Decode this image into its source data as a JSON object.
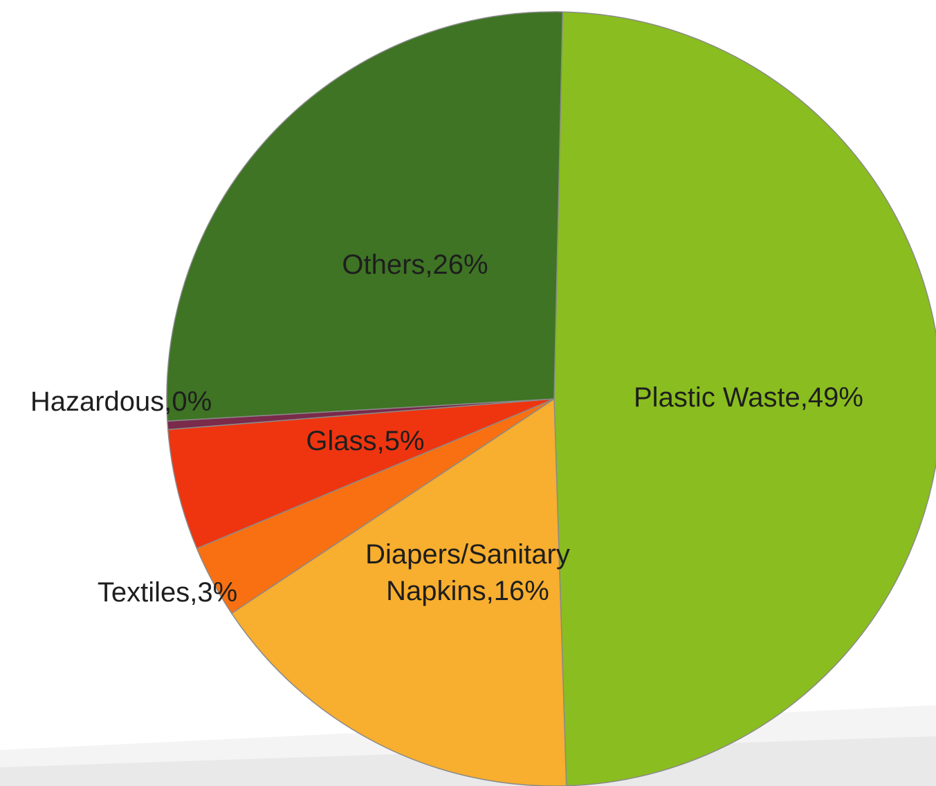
{
  "chart_data": {
    "type": "pie",
    "categories": [
      "Plastic Waste",
      "Diapers/Sanitary Napkins",
      "Textiles",
      "Glass",
      "Hazardous",
      "Others"
    ],
    "values": [
      49,
      16,
      3,
      5,
      0,
      26
    ],
    "slices": [
      {
        "name": "Plastic Waste",
        "value": 49,
        "color": "#8abd1f",
        "label_lines": [
          "Plastic Waste,49%"
        ]
      },
      {
        "name": "Diapers/Sanitary Napkins",
        "value": 16,
        "color": "#f8ae2e",
        "label_lines": [
          "Diapers/Sanitary",
          "Napkins,16%"
        ]
      },
      {
        "name": "Textiles",
        "value": 3,
        "color": "#f87011",
        "label_lines": [
          "Textiles,3%"
        ]
      },
      {
        "name": "Glass",
        "value": 5,
        "color": "#ee3510",
        "label_lines": [
          "Glass,5%"
        ]
      },
      {
        "name": "Hazardous",
        "value": 0,
        "color": "#7a2a4a",
        "label_lines": [
          "Hazardous,0%"
        ]
      },
      {
        "name": "Others",
        "value": 26,
        "color": "#3e7424",
        "label_lines": [
          "Others,26%"
        ]
      }
    ],
    "start_angle": "12 o'clock",
    "direction": "clockwise",
    "legend": "none",
    "title": ""
  }
}
